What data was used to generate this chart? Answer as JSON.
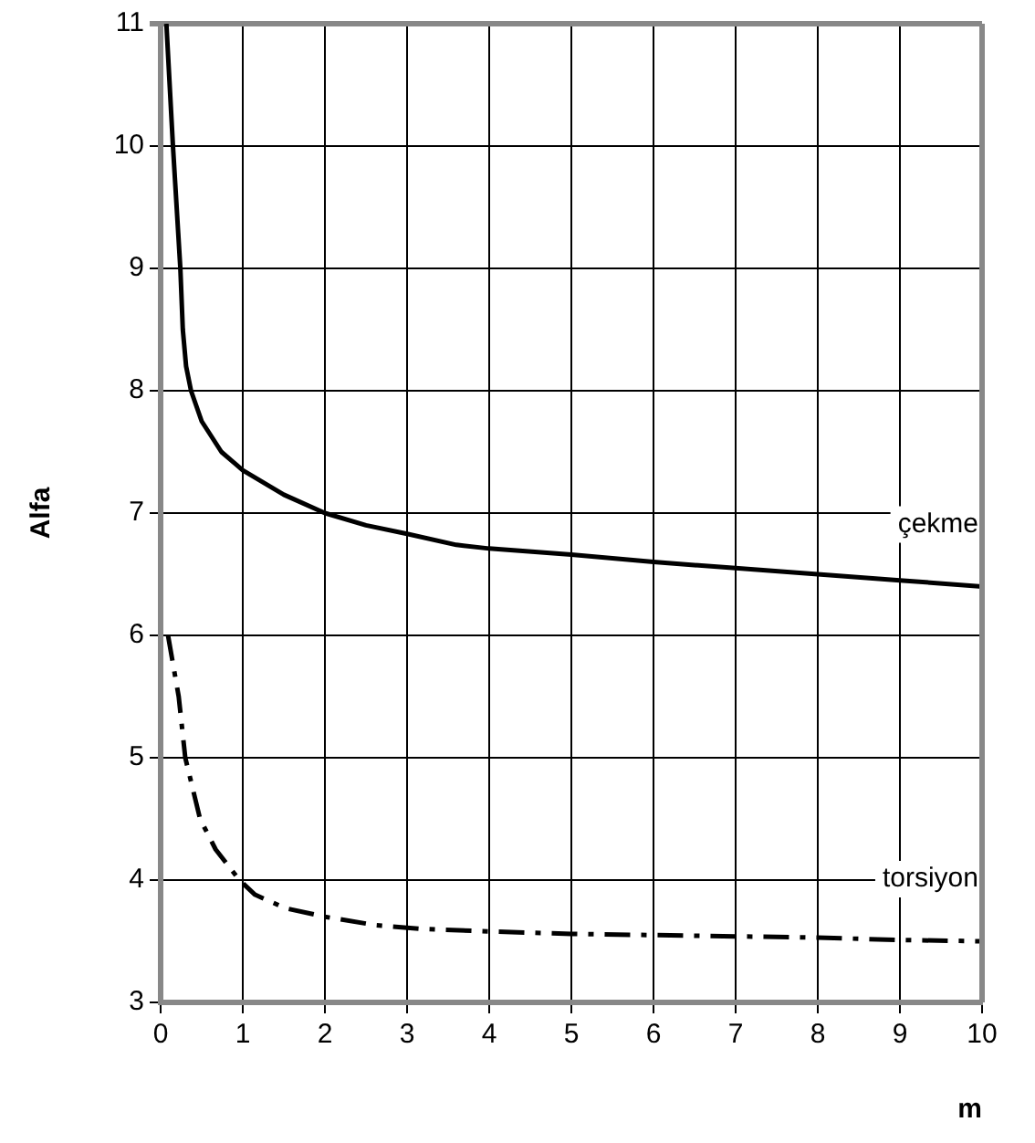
{
  "chart_data": {
    "type": "line",
    "xlabel": "m",
    "ylabel": "Alfa",
    "xlim": [
      0,
      10
    ],
    "ylim": [
      3,
      11
    ],
    "xticks": [
      0,
      1,
      2,
      3,
      4,
      5,
      6,
      7,
      8,
      9,
      10
    ],
    "yticks": [
      3,
      4,
      5,
      6,
      7,
      8,
      9,
      10,
      11
    ],
    "grid": true,
    "legend": false,
    "marker": "none",
    "series": [
      {
        "name": "çekme",
        "color": "#000000",
        "line_style": "solid",
        "x": [
          0.07,
          0.15,
          0.24,
          0.27,
          0.31,
          0.37,
          0.5,
          0.74,
          1.0,
          1.5,
          2.0,
          2.5,
          3.0,
          3.6,
          4,
          5,
          6,
          7,
          8,
          9,
          10
        ],
        "values": [
          11,
          10,
          9,
          8.5,
          8.2,
          8,
          7.75,
          7.5,
          7.35,
          7.15,
          7,
          6.9,
          6.83,
          6.74,
          6.71,
          6.66,
          6.6,
          6.55,
          6.5,
          6.45,
          6.4
        ]
      },
      {
        "name": "torsiyon",
        "color": "#000000",
        "line_style": "dashed",
        "x": [
          0.09,
          0.22,
          0.3,
          0.48,
          0.67,
          0.96,
          1.15,
          1.52,
          2.0,
          2.63,
          3.2,
          4,
          5,
          6,
          7,
          8,
          9,
          10
        ],
        "values": [
          6,
          5.5,
          5,
          4.5,
          4.25,
          4,
          3.88,
          3.77,
          3.7,
          3.63,
          3.6,
          3.58,
          3.56,
          3.55,
          3.54,
          3.53,
          3.51,
          3.5
        ]
      }
    ]
  }
}
